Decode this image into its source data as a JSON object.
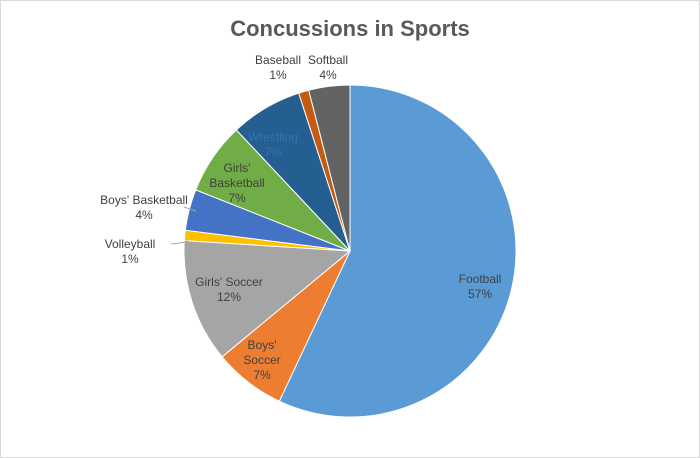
{
  "chart_data": {
    "type": "pie",
    "title": "Concussions in Sports",
    "slices": [
      {
        "label": "Football",
        "label_lines": [
          "Football"
        ],
        "value": 57,
        "display": "57%",
        "color": "#5b9bd5",
        "label_color": "#404040"
      },
      {
        "label": "Boys' Soccer",
        "label_lines": [
          "Boys'",
          "Soccer"
        ],
        "value": 7,
        "display": "7%",
        "color": "#ed7d31",
        "label_color": "#404040"
      },
      {
        "label": "Girls' Soccer",
        "label_lines": [
          "Girls' Soccer"
        ],
        "value": 12,
        "display": "12%",
        "color": "#a5a5a5",
        "label_color": "#404040"
      },
      {
        "label": "Volleyball",
        "label_lines": [
          "Volleyball"
        ],
        "value": 1,
        "display": "1%",
        "color": "#ffc000",
        "label_color": "#404040"
      },
      {
        "label": "Boys' Basketball",
        "label_lines": [
          "Boys' Basketball"
        ],
        "value": 4,
        "display": "4%",
        "color": "#4472c4",
        "label_color": "#404040"
      },
      {
        "label": "Girls' Basketball",
        "label_lines": [
          "Girls'",
          "Basketball"
        ],
        "value": 7,
        "display": "7%",
        "color": "#70ad47",
        "label_color": "#404040"
      },
      {
        "label": "Wrestling",
        "label_lines": [
          "Wrestling"
        ],
        "value": 7,
        "display": "7%",
        "color": "#255e91",
        "label_color": "#2e75b6"
      },
      {
        "label": "Baseball",
        "label_lines": [
          "Baseball"
        ],
        "value": 1,
        "display": "1%",
        "color": "#c55a11",
        "label_color": "#404040"
      },
      {
        "label": "Softball",
        "label_lines": [
          "Softball"
        ],
        "value": 4,
        "display": "4%",
        "color": "#636363",
        "label_color": "#404040"
      }
    ]
  }
}
